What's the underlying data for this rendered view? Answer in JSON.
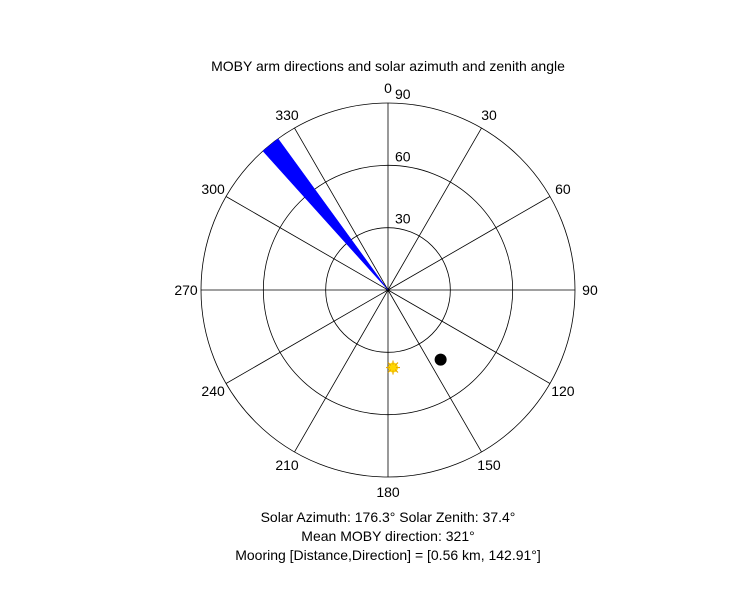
{
  "chart_data": {
    "type": "polar",
    "title": "MOBY arm directions and solar azimuth and zenith angle",
    "angle_ticks": [
      "0",
      "30",
      "60",
      "90",
      "120",
      "150",
      "180",
      "210",
      "240",
      "270",
      "300",
      "330"
    ],
    "angle_tick_values": [
      0,
      30,
      60,
      90,
      120,
      150,
      180,
      210,
      240,
      270,
      300,
      330
    ],
    "radius_ticks": [
      "30",
      "60",
      "90"
    ],
    "radius_tick_values": [
      30,
      60,
      90
    ],
    "radius_max": 90,
    "grid": true,
    "arm_directions": {
      "azimuth_min_deg": 318,
      "azimuth_max_deg": 324,
      "radius": 90,
      "color": "#0000ff"
    },
    "sun": {
      "azimuth_deg": 176.3,
      "zenith_deg": 37.4,
      "color": "#ffd700"
    },
    "mooring": {
      "azimuth_deg": 142.91,
      "radius": 42,
      "color": "#000000"
    },
    "notes": [
      "Solar Azimuth: 176.3°    Solar Zenith: 37.4°",
      "Mean MOBY direction: 321°",
      "Mooring [Distance,Direction] = [0.56 km, 142.91°]"
    ]
  }
}
